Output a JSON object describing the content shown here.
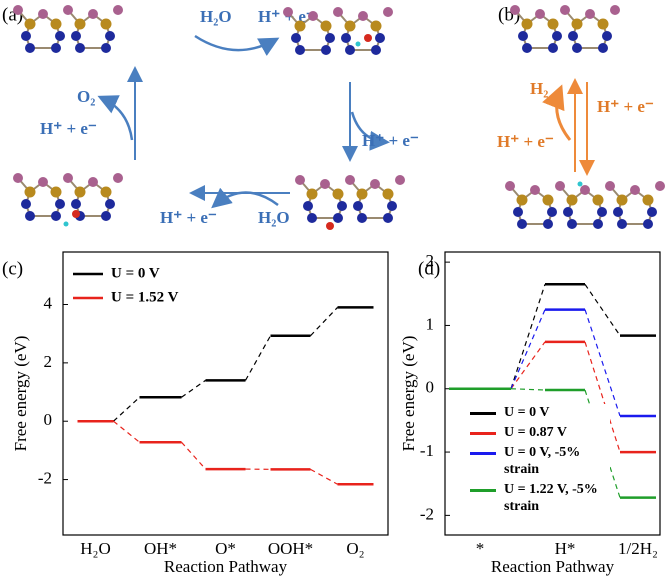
{
  "panel_labels": [
    "(a)",
    "(b)",
    "(c)",
    "(d)"
  ],
  "schematic": {
    "panel_a": [
      "H₂O",
      "H⁺ + e⁻",
      "H⁺ + e⁻",
      "H⁺ + e⁻",
      "H₂O",
      "O₂",
      "H⁺ + e⁻"
    ],
    "panel_b": [
      "H₂",
      "H⁺ + e⁻",
      "H⁺ + e⁻"
    ]
  },
  "chart_data": [
    {
      "type": "levels",
      "x_label": "Reaction Pathway",
      "y_label": "Free energy (eV)",
      "categories": [
        "H₂O",
        "OH*",
        "O*",
        "OOH*",
        "O₂"
      ],
      "series": [
        {
          "name": "U = 0 V",
          "color": "#000000",
          "values": [
            0,
            0.82,
            1.4,
            2.93,
            3.9
          ]
        },
        {
          "name": "U = 1.52 V",
          "color": "#e8231c",
          "values": [
            0,
            -0.72,
            -1.64,
            -1.65,
            -2.16
          ]
        }
      ],
      "ylim": [
        -3.9,
        5.8
      ],
      "yticks": [
        -2,
        0,
        2,
        4
      ],
      "legend": "upper-left"
    },
    {
      "type": "levels",
      "x_label": "Reaction Pathway",
      "y_label": "Free energy (eV)",
      "categories": [
        "*",
        "H*",
        "1/2H₂"
      ],
      "series": [
        {
          "name": "U = 0 V",
          "color": "#000000",
          "values": [
            0,
            1.65,
            0.84
          ]
        },
        {
          "name": "U = 0.87 V",
          "color": "#e8231c",
          "values": [
            0,
            0.74,
            -1.0
          ]
        },
        {
          "name": "U = 0 V, -5% strain",
          "color": "#1a1aee",
          "values": [
            0,
            1.25,
            -0.43
          ]
        },
        {
          "name": "U = 1.22 V, -5% strain",
          "color": "#1f9e2a",
          "values": [
            0,
            -0.02,
            -1.72
          ]
        }
      ],
      "ylim": [
        -2.31,
        2.16
      ],
      "yticks": [
        -2,
        -1,
        0,
        1,
        2
      ],
      "legend": "lower-right"
    }
  ]
}
